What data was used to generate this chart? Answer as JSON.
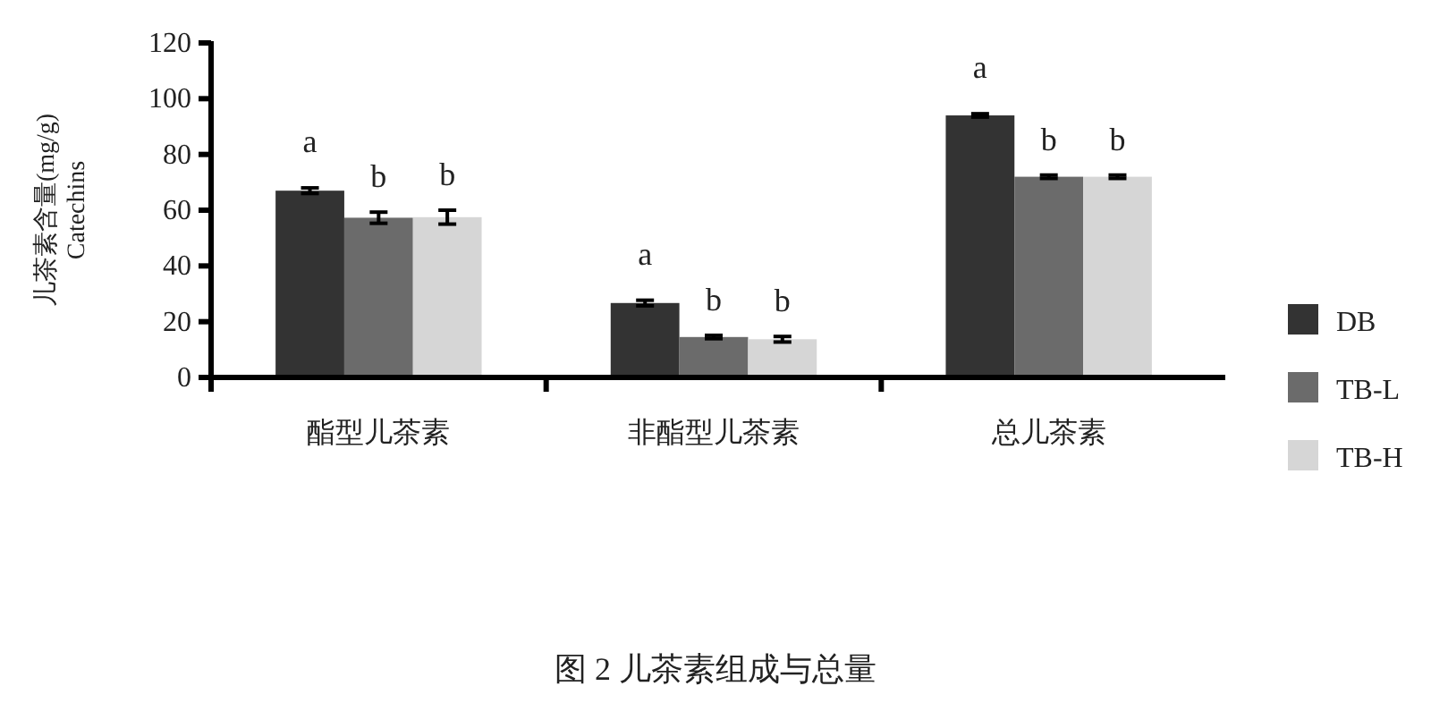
{
  "chart_data": {
    "type": "bar",
    "ylabel": "儿茶素含量(mg/g)\nCatechins",
    "categories": [
      "酯型儿茶素",
      "非酯型儿茶素",
      "总儿茶素"
    ],
    "series": [
      {
        "name": "DB",
        "color": "#333333",
        "values": [
          67,
          26.7,
          94
        ],
        "errors": [
          1,
          1,
          0.6
        ]
      },
      {
        "name": "TB-L",
        "color": "#6b6b6b",
        "values": [
          57.3,
          14.5,
          72
        ],
        "errors": [
          2,
          0.6,
          0.6
        ]
      },
      {
        "name": "TB-H",
        "color": "#d6d6d6",
        "values": [
          57.5,
          13.7,
          72
        ],
        "errors": [
          2.5,
          1,
          0.6
        ]
      }
    ],
    "ylim": [
      0,
      120
    ],
    "yticks": [
      0,
      20,
      40,
      60,
      80,
      100,
      120
    ],
    "grid": false,
    "legend": "right",
    "annotations": [
      "a",
      "b",
      "b",
      "a",
      "b",
      "b",
      "a",
      "b",
      "b",
      "图 2  儿茶素组成与总量"
    ]
  }
}
